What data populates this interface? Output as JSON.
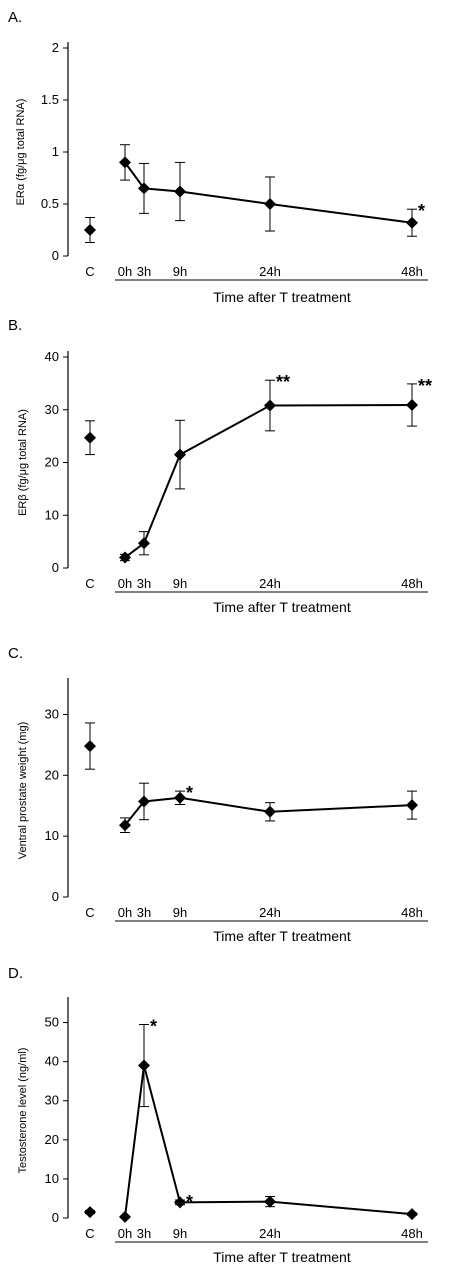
{
  "chart_data": [
    {
      "panel_label": "A.",
      "type": "line",
      "ylabel": "ERα (fg/μg total RNA)",
      "xlabel": "Time after T treatment",
      "ylim": [
        0,
        2
      ],
      "yticks": [
        "0",
        "0.5",
        "1",
        "1.5",
        "2"
      ],
      "ytick_values": [
        0,
        0.5,
        1,
        1.5,
        2
      ],
      "categories": [
        "C",
        "0h",
        "3h",
        "9h",
        "24h",
        "48h"
      ],
      "control": {
        "x": "C",
        "y": 0.25,
        "err": 0.12
      },
      "series": [
        {
          "x": [
            "0h",
            "3h",
            "9h",
            "24h",
            "48h"
          ],
          "y": [
            0.9,
            0.65,
            0.62,
            0.5,
            0.32
          ],
          "err": [
            0.17,
            0.24,
            0.28,
            0.26,
            0.13
          ]
        }
      ],
      "annotations": [
        {
          "x": "48h",
          "text": "*"
        }
      ]
    },
    {
      "panel_label": "B.",
      "type": "line",
      "ylabel": "ERβ (fg/μg total RNA)",
      "xlabel": "Time after T treatment",
      "ylim": [
        0,
        40
      ],
      "yticks": [
        "0",
        "10",
        "20",
        "30",
        "40"
      ],
      "ytick_values": [
        0,
        10,
        20,
        30,
        40
      ],
      "categories": [
        "C",
        "0h",
        "3h",
        "9h",
        "24h",
        "48h"
      ],
      "control": {
        "x": "C",
        "y": 24.7,
        "err": 3.2
      },
      "series": [
        {
          "x": [
            "0h",
            "3h",
            "9h",
            "24h",
            "48h"
          ],
          "y": [
            2,
            4.7,
            21.5,
            30.8,
            30.9
          ],
          "err": [
            0.6,
            2.2,
            6.5,
            4.8,
            4
          ]
        }
      ],
      "annotations": [
        {
          "x": "24h",
          "text": "**"
        },
        {
          "x": "48h",
          "text": "**"
        }
      ]
    },
    {
      "panel_label": "C.",
      "type": "line",
      "ylabel": "Ventral prostate weight (mg)",
      "xlabel": "Time after T treatment",
      "ylim": [
        0,
        35
      ],
      "yticks": [
        "0",
        "10",
        "20",
        "30"
      ],
      "ytick_values": [
        0,
        10,
        20,
        30
      ],
      "categories": [
        "C",
        "0h",
        "3h",
        "9h",
        "24h",
        "48h"
      ],
      "control": {
        "x": "C",
        "y": 24.8,
        "err": 3.8
      },
      "series": [
        {
          "x": [
            "0h",
            "3h",
            "9h",
            "24h",
            "48h"
          ],
          "y": [
            11.8,
            15.7,
            16.3,
            14,
            15.1
          ],
          "err": [
            1.2,
            3,
            1.1,
            1.5,
            2.3
          ]
        }
      ],
      "annotations": [
        {
          "x": "9h",
          "text": "*"
        }
      ]
    },
    {
      "panel_label": "D.",
      "type": "line",
      "ylabel": "Testosterone level (ng/ml)",
      "xlabel": "Time after T treatment",
      "ylim": [
        0,
        55
      ],
      "yticks": [
        "0",
        "10",
        "20",
        "30",
        "40",
        "50"
      ],
      "ytick_values": [
        0,
        10,
        20,
        30,
        40,
        50
      ],
      "categories": [
        "C",
        "0h",
        "3h",
        "9h",
        "24h",
        "48h"
      ],
      "control": {
        "x": "C",
        "y": 1.5,
        "err": 0.4
      },
      "series": [
        {
          "x": [
            "0h",
            "3h",
            "9h",
            "24h",
            "48h"
          ],
          "y": [
            0.3,
            39,
            4,
            4.2,
            1
          ],
          "err": [
            0.2,
            10.5,
            0.6,
            1.3,
            0.3
          ]
        }
      ],
      "annotations": [
        {
          "x": "3h",
          "text": "*"
        },
        {
          "x": "9h",
          "text": "*"
        }
      ]
    }
  ]
}
